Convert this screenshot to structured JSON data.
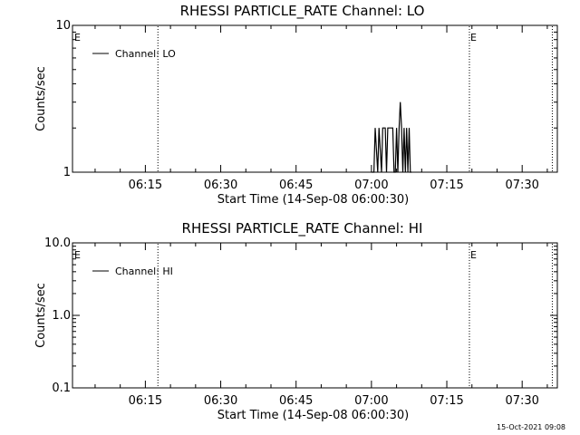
{
  "footer": {
    "timestamp": "15-Oct-2021 09:08"
  },
  "chart_data": [
    {
      "type": "line",
      "title": "RHESSI PARTICLE_RATE Channel: LO",
      "xlabel": "Start Time (14-Sep-08 06:00:30)",
      "ylabel": "Counts/sec",
      "yscale": "log",
      "ylim": [
        1,
        10
      ],
      "y_ticks": [
        {
          "value": 1,
          "label": "1"
        },
        {
          "value": 10,
          "label": "10"
        }
      ],
      "xlim": [
        "06:00:30",
        "07:37:00"
      ],
      "x_ticks": [
        "06:15",
        "06:30",
        "06:45",
        "07:00",
        "07:15",
        "07:30"
      ],
      "legend": {
        "position": "top-left",
        "entries": [
          "Channel: LO"
        ]
      },
      "markers": [
        {
          "time": "06:00:30",
          "label": "E"
        },
        {
          "time": "06:17:30",
          "label": ""
        },
        {
          "time": "07:19:30",
          "label": "E"
        },
        {
          "time": "07:36:00",
          "label": ""
        }
      ],
      "series": [
        {
          "name": "Channel: LO",
          "points": [
            [
              "07:00:00",
              1
            ],
            [
              "07:00:30",
              1
            ],
            [
              "07:00:45",
              2
            ],
            [
              "07:01:15",
              1
            ],
            [
              "07:01:30",
              2
            ],
            [
              "07:02:00",
              1
            ],
            [
              "07:02:15",
              2
            ],
            [
              "07:02:45",
              2
            ],
            [
              "07:03:00",
              1
            ],
            [
              "07:03:15",
              2
            ],
            [
              "07:04:15",
              2
            ],
            [
              "07:04:30",
              1
            ],
            [
              "07:04:45",
              1
            ],
            [
              "07:05:00",
              2
            ],
            [
              "07:05:15",
              1
            ],
            [
              "07:05:30",
              2
            ],
            [
              "07:05:45",
              3
            ],
            [
              "07:06:00",
              2
            ],
            [
              "07:06:15",
              1
            ],
            [
              "07:06:30",
              2
            ],
            [
              "07:06:45",
              1
            ],
            [
              "07:07:00",
              2
            ],
            [
              "07:07:15",
              1
            ],
            [
              "07:07:30",
              2
            ],
            [
              "07:07:45",
              1
            ],
            [
              "07:08:00",
              1
            ]
          ]
        }
      ]
    },
    {
      "type": "line",
      "title": "RHESSI PARTICLE_RATE Channel: HI",
      "xlabel": "Start Time (14-Sep-08 06:00:30)",
      "ylabel": "Counts/sec",
      "yscale": "log",
      "ylim": [
        0.1,
        10
      ],
      "y_ticks": [
        {
          "value": 0.1,
          "label": "0.1"
        },
        {
          "value": 1,
          "label": "1.0"
        },
        {
          "value": 10,
          "label": "10.0"
        }
      ],
      "xlim": [
        "06:00:30",
        "07:37:00"
      ],
      "x_ticks": [
        "06:15",
        "06:30",
        "06:45",
        "07:00",
        "07:15",
        "07:30"
      ],
      "legend": {
        "position": "top-left",
        "entries": [
          "Channel: HI"
        ]
      },
      "markers": [
        {
          "time": "06:00:30",
          "label": "E"
        },
        {
          "time": "06:17:30",
          "label": ""
        },
        {
          "time": "07:19:30",
          "label": "E"
        },
        {
          "time": "07:36:00",
          "label": ""
        }
      ],
      "series": [
        {
          "name": "Channel: HI",
          "points": []
        }
      ]
    }
  ]
}
